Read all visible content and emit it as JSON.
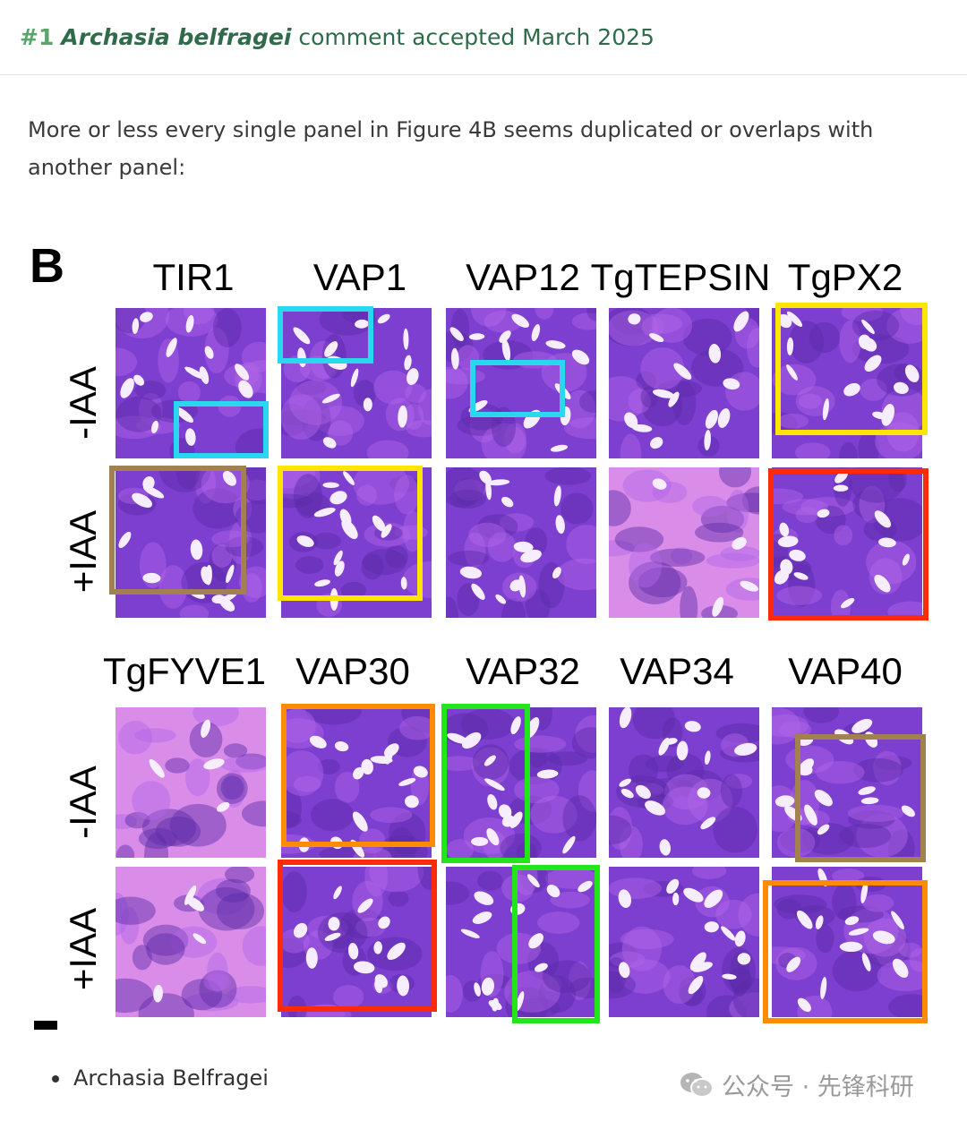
{
  "comment_header": {
    "number": "#1",
    "author": "Archasia belfragei",
    "status": "comment accepted March 2025"
  },
  "comment_body": "More or less every single panel in Figure 4B seems duplicated or overlaps with another panel:",
  "figure": {
    "panel_letter": "B",
    "top_block": {
      "columns": [
        "TIR1",
        "VAP1",
        "VAP12",
        "TgTEPSIN",
        "TgPX2"
      ],
      "rows": [
        "-IAA",
        "+IAA"
      ]
    },
    "bottom_block": {
      "columns": [
        "TgFYVE1",
        "VAP30",
        "VAP32",
        "VAP34",
        "VAP40"
      ],
      "rows": [
        "-IAA",
        "+IAA"
      ]
    },
    "highlight_colors": {
      "cyan": "#29d7ee",
      "yellow": "#ffe500",
      "brown": "#a3804f",
      "red": "#ff2a0a",
      "orange": "#ff8c00",
      "green": "#22e51a"
    },
    "tile_colors": {
      "stain": "#7d3fd0",
      "stain_dark": "#5a2aa8",
      "stain_light": "#b266e8",
      "pink": "#d98ce8",
      "cell": "#f6eeff"
    }
  },
  "list_items": [
    "Archasia Belfragei"
  ],
  "watermark": {
    "icon": "wechat-icon",
    "text": "公众号 · 先锋科研"
  }
}
